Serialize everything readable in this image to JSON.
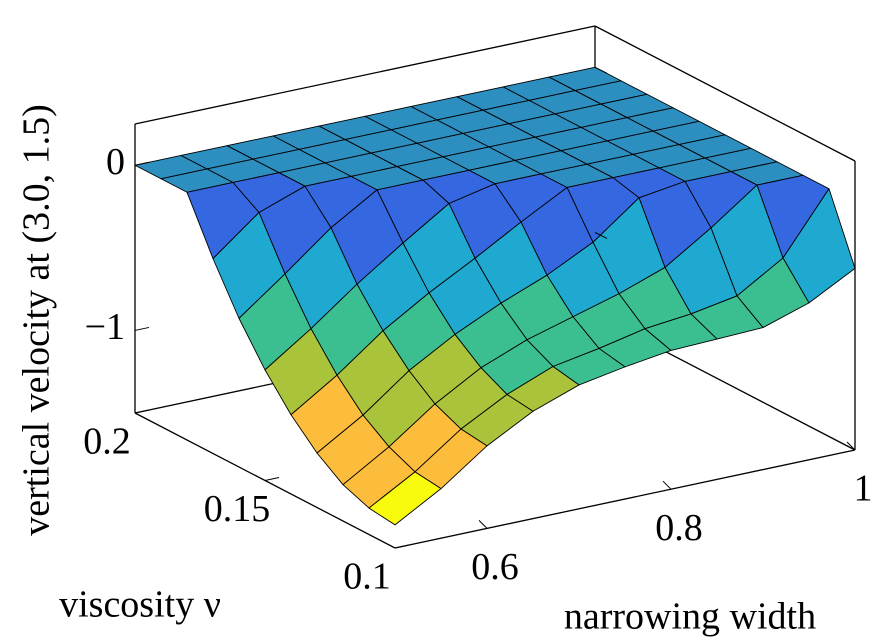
{
  "chart_data": {
    "type": "surface",
    "xlabel": "narrowing width",
    "ylabel": "viscosity ν",
    "zlabel": "vertical velocity at (3.0, 1.5)",
    "x": [
      0.5,
      0.55,
      0.6,
      0.65,
      0.7,
      0.75,
      0.8,
      0.85,
      0.9,
      0.95,
      1.0
    ],
    "y": [
      0.1,
      0.11,
      0.12,
      0.13,
      0.14,
      0.15,
      0.16,
      0.17,
      0.18,
      0.19,
      0.2
    ],
    "z": [
      [
        -1.36,
        -1.2,
        -1.0,
        -0.85,
        -0.75,
        -0.7,
        -0.66,
        -0.65,
        -0.64,
        -0.55,
        -0.4
      ],
      [
        -1.34,
        -1.18,
        -0.98,
        -0.83,
        -0.72,
        -0.67,
        -0.61,
        -0.58,
        -0.53,
        -0.36,
        0
      ],
      [
        -1.28,
        -1.11,
        -0.91,
        -0.75,
        -0.64,
        -0.56,
        -0.48,
        -0.38,
        -0.2,
        0,
        0
      ],
      [
        -1.17,
        -1.0,
        -0.79,
        -0.63,
        -0.5,
        -0.39,
        -0.25,
        -0.04,
        0,
        0,
        0
      ],
      [
        -1.02,
        -0.84,
        -0.63,
        -0.46,
        -0.31,
        -0.15,
        0,
        0,
        0,
        0,
        0
      ],
      [
        -0.83,
        -0.64,
        -0.43,
        -0.24,
        -0.06,
        0,
        0,
        0,
        0,
        0,
        0
      ],
      [
        -0.6,
        -0.39,
        -0.17,
        0,
        0,
        0,
        0,
        0,
        0,
        0,
        0
      ],
      [
        -0.32,
        -0.1,
        0,
        0,
        0,
        0,
        0,
        0,
        0,
        0,
        0
      ],
      [
        0,
        0,
        0,
        0,
        0,
        0,
        0,
        0,
        0,
        0,
        0
      ],
      [
        0,
        0,
        0,
        0,
        0,
        0,
        0,
        0,
        0,
        0,
        0
      ],
      [
        0,
        0,
        0,
        0,
        0,
        0,
        0,
        0,
        0,
        0,
        0
      ]
    ],
    "xlim": [
      0.5,
      1.0
    ],
    "ylim": [
      0.1,
      0.2
    ],
    "zlim": [
      -1.5,
      0.25
    ],
    "xticks": [
      0.6,
      0.8,
      1
    ],
    "yticks": [
      0.1,
      0.15,
      0.2
    ],
    "zticks": [
      {
        "value": -1,
        "label": "−1"
      },
      0
    ],
    "colormap": [
      "#f9fb0e",
      "#fbbd3b",
      "#a9c33a",
      "#3bbf91",
      "#1fa9d0",
      "#3568e0",
      "#2d8ec0"
    ]
  }
}
